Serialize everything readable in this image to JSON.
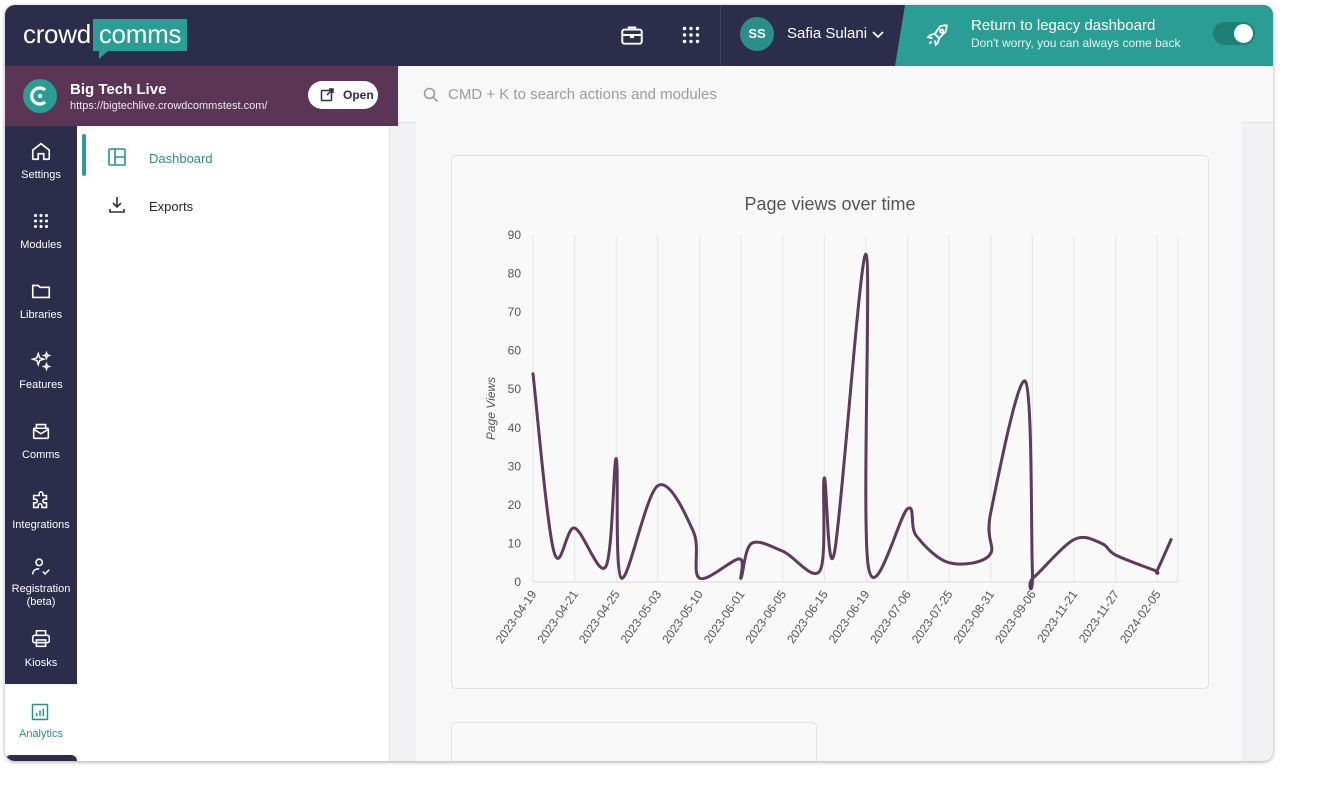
{
  "header": {
    "logo_text_a": "crowd",
    "logo_text_b": "comms",
    "user_initials": "SS",
    "user_name": "Safia Sulani",
    "legacy_title": "Return to legacy dashboard",
    "legacy_subtitle": "Don't worry, you can always come back",
    "legacy_toggle_on": true
  },
  "event": {
    "title": "Big Tech Live",
    "url": "https://bigtechlive.crowdcommstest.com/",
    "open_label": "Open"
  },
  "search": {
    "placeholder": "CMD + K to search actions and modules"
  },
  "rail": {
    "items": [
      {
        "label": "Settings",
        "icon": "home-icon"
      },
      {
        "label": "Modules",
        "icon": "grid-icon"
      },
      {
        "label": "Libraries",
        "icon": "folder-icon"
      },
      {
        "label": "Features",
        "icon": "sparkles-icon"
      },
      {
        "label": "Comms",
        "icon": "mail-stack-icon"
      },
      {
        "label": "Integrations",
        "icon": "puzzle-icon"
      },
      {
        "label": "Registration",
        "label2": "(beta)",
        "icon": "user-check-icon"
      },
      {
        "label": "Kiosks",
        "icon": "printer-icon"
      }
    ],
    "active": {
      "label": "Analytics",
      "icon": "chart-icon"
    }
  },
  "subnav": {
    "items": [
      {
        "label": "Dashboard",
        "icon": "layout-icon",
        "active": true
      },
      {
        "label": "Exports",
        "icon": "download-icon",
        "active": false
      }
    ]
  },
  "colors": {
    "accent": "#2a9d95",
    "nav": "#2b2d4a",
    "event": "#5a3556",
    "line": "#5e3a5c"
  },
  "chart_data": {
    "type": "line",
    "title": "Page views over time",
    "xlabel": "",
    "ylabel": "Page Views",
    "ylim": [
      0,
      90
    ],
    "yticks": [
      0,
      10,
      20,
      30,
      40,
      50,
      60,
      70,
      80,
      90
    ],
    "grid": "vertical",
    "x": [
      "2023-04-19",
      "2023-04-20",
      "2023-04-21",
      "2023-04-24",
      "2023-04-25",
      "2023-04-26",
      "2023-05-03",
      "2023-05-09",
      "2023-05-10",
      "2023-05-31",
      "2023-06-01",
      "2023-06-02",
      "2023-06-05",
      "2023-06-14",
      "2023-06-15",
      "2023-06-16",
      "2023-06-19",
      "2023-06-20",
      "2023-07-06",
      "2023-07-10",
      "2023-07-25",
      "2023-08-30",
      "2023-08-31",
      "2023-09-05",
      "2023-09-06",
      "2023-09-07",
      "2023-11-21",
      "2023-11-25",
      "2023-11-27",
      "2024-02-01",
      "2024-02-05",
      "2024-02-07"
    ],
    "tick_labels": [
      "2023-04-19",
      "2023-04-21",
      "2023-04-25",
      "2023-05-03",
      "2023-05-10",
      "2023-06-01",
      "2023-06-05",
      "2023-06-15",
      "2023-06-19",
      "2023-07-06",
      "2023-07-25",
      "2023-08-31",
      "2023-09-06",
      "2023-11-21",
      "2023-11-27",
      "2024-02-05"
    ],
    "series": [
      {
        "values": [
          54,
          8,
          14,
          4,
          32,
          1,
          25,
          13,
          1,
          6,
          1,
          10,
          8,
          3,
          27,
          8,
          85,
          4,
          19,
          12,
          5,
          7,
          18,
          52,
          3,
          1,
          11,
          10,
          7,
          3,
          3,
          11
        ]
      }
    ]
  }
}
